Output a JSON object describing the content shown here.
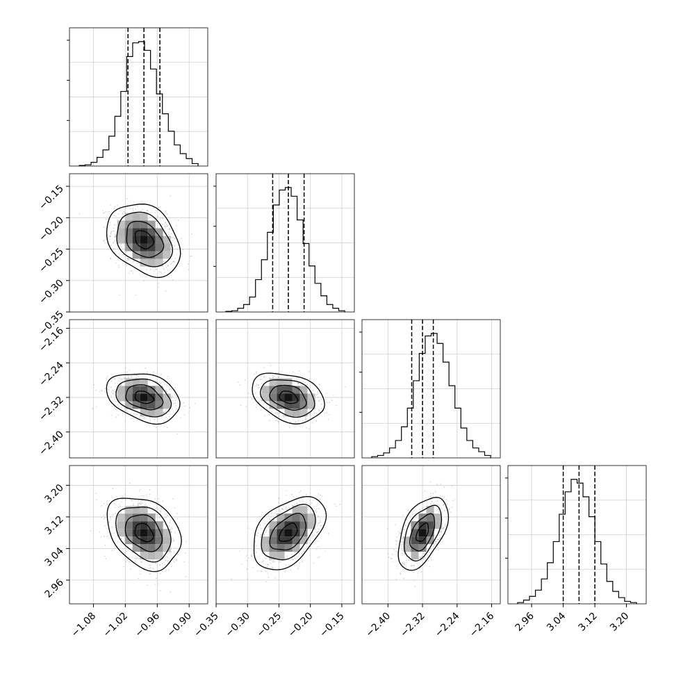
{
  "chart_data": {
    "type": "corner",
    "parameters": [
      {
        "median": -0.985,
        "q16": -1.015,
        "q84": -0.955,
        "xlim": [
          -1.125,
          -0.865
        ],
        "ticks": [
          "−1.08",
          "−1.02",
          "−0.96",
          "−0.90"
        ],
        "tick_values": [
          -1.08,
          -1.02,
          -0.96,
          -0.9
        ]
      },
      {
        "median": -0.235,
        "q16": -0.26,
        "q84": -0.21,
        "xlim": [
          -0.35,
          -0.13
        ],
        "ticks": [
          "−0.35",
          "−0.30",
          "−0.25",
          "−0.20",
          "−0.15"
        ],
        "tick_values": [
          -0.35,
          -0.3,
          -0.25,
          -0.2,
          -0.15
        ]
      },
      {
        "median": -2.32,
        "q16": -2.345,
        "q84": -2.295,
        "xlim": [
          -2.46,
          -2.14
        ],
        "ticks": [
          "−2.40",
          "−2.32",
          "−2.24",
          "−2.16"
        ],
        "tick_values": [
          -2.4,
          -2.32,
          -2.24,
          -2.16
        ]
      },
      {
        "median": 3.08,
        "q16": 3.04,
        "q84": 3.12,
        "xlim": [
          2.9,
          3.25
        ],
        "ticks": [
          "2.96",
          "3.04",
          "3.12",
          "3.20"
        ],
        "tick_values": [
          2.96,
          3.04,
          3.12,
          3.2
        ]
      }
    ],
    "y_ticks": [
      null,
      {
        "labels": [
          "−0.15",
          "−0.20",
          "−0.25",
          "−0.30",
          "−0.35"
        ],
        "values": [
          -0.15,
          -0.2,
          -0.25,
          -0.3,
          -0.35
        ]
      },
      {
        "labels": [
          "−2.16",
          "−2.24",
          "−2.32",
          "−2.40"
        ],
        "values": [
          -2.16,
          -2.24,
          -2.32,
          -2.4
        ]
      },
      {
        "labels": [
          "3.20",
          "3.12",
          "3.04",
          "2.96"
        ],
        "values": [
          3.2,
          3.12,
          3.04,
          2.96
        ]
      }
    ],
    "histograms": [
      [
        0.005,
        0.01,
        0.03,
        0.07,
        0.13,
        0.24,
        0.4,
        0.6,
        0.88,
        0.99,
        1.0,
        0.93,
        0.78,
        0.58,
        0.42,
        0.28,
        0.17,
        0.1,
        0.06,
        0.02
      ],
      [
        0.005,
        0.01,
        0.03,
        0.06,
        0.12,
        0.26,
        0.42,
        0.64,
        0.86,
        0.98,
        1.0,
        0.93,
        0.74,
        0.55,
        0.37,
        0.23,
        0.13,
        0.06,
        0.03,
        0.01
      ],
      [
        0.01,
        0.02,
        0.04,
        0.08,
        0.14,
        0.25,
        0.4,
        0.62,
        0.84,
        0.98,
        1.0,
        0.92,
        0.77,
        0.58,
        0.4,
        0.24,
        0.14,
        0.08,
        0.05,
        0.02
      ],
      [
        0.01,
        0.03,
        0.06,
        0.11,
        0.2,
        0.33,
        0.5,
        0.72,
        0.9,
        1.0,
        0.97,
        0.86,
        0.7,
        0.5,
        0.32,
        0.18,
        0.1,
        0.05,
        0.02,
        0.01
      ]
    ],
    "pairs": [
      {
        "row": 1,
        "col": 0,
        "corr": -0.3
      },
      {
        "row": 2,
        "col": 0,
        "corr": -0.3
      },
      {
        "row": 2,
        "col": 1,
        "corr": -0.3
      },
      {
        "row": 3,
        "col": 0,
        "corr": -0.3
      },
      {
        "row": 3,
        "col": 1,
        "corr": 0.45
      },
      {
        "row": 3,
        "col": 2,
        "corr": 0.5
      }
    ],
    "contour_levels_sigma": [
      0.5,
      1.0,
      1.5,
      2.0
    ],
    "grid": true,
    "legend": "none"
  }
}
